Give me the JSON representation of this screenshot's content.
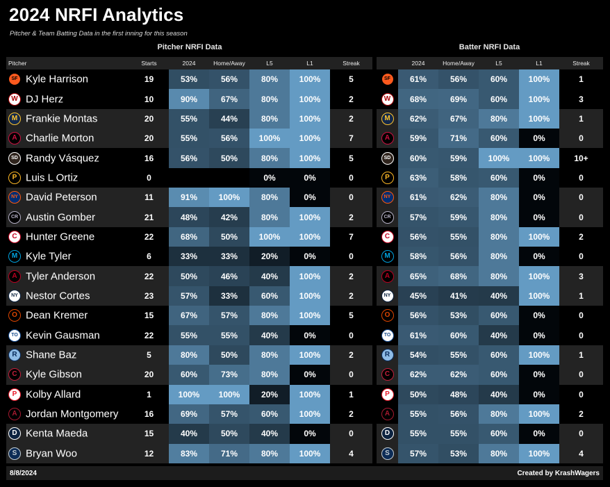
{
  "title": "2024 NRFI Analytics",
  "subtitle": "Pitcher & Team Batting Data in the first inning for this season",
  "pitcher_section_title": "Pitcher NRFI Data",
  "batter_section_title": "Batter NRFI Data",
  "pitcher_headers": [
    "Pitcher",
    "Starts",
    "2024",
    "Home/Away",
    "L5",
    "L1",
    "Streak"
  ],
  "batter_headers": [
    "2024",
    "Home/Away",
    "L5",
    "L1",
    "Streak"
  ],
  "rows": [
    {
      "name": "Kyle Harrison",
      "team_icon": "giants-logo-icon",
      "starts": "19",
      "p": [
        "53%",
        "56%",
        "80%",
        "100%"
      ],
      "p_streak": "5",
      "b": [
        "61%",
        "56%",
        "60%",
        "100%"
      ],
      "b_streak": "1"
    },
    {
      "name": "DJ Herz",
      "team_icon": "nationals-logo-icon",
      "starts": "10",
      "p": [
        "90%",
        "67%",
        "80%",
        "100%"
      ],
      "p_streak": "2",
      "b": [
        "68%",
        "69%",
        "60%",
        "100%"
      ],
      "b_streak": "3"
    },
    {
      "name": "Frankie Montas",
      "team_icon": "brewers-logo-icon",
      "starts": "20",
      "p": [
        "55%",
        "44%",
        "80%",
        "100%"
      ],
      "p_streak": "2",
      "b": [
        "62%",
        "67%",
        "80%",
        "100%"
      ],
      "b_streak": "1"
    },
    {
      "name": "Charlie Morton",
      "team_icon": "braves-logo-icon",
      "starts": "20",
      "p": [
        "55%",
        "56%",
        "100%",
        "100%"
      ],
      "p_streak": "7",
      "b": [
        "59%",
        "71%",
        "60%",
        "0%"
      ],
      "b_streak": "0"
    },
    {
      "name": "Randy Vásquez",
      "team_icon": "padres-logo-icon",
      "starts": "16",
      "p": [
        "56%",
        "50%",
        "80%",
        "100%"
      ],
      "p_streak": "5",
      "b": [
        "60%",
        "59%",
        "100%",
        "100%"
      ],
      "b_streak": "10+"
    },
    {
      "name": "Luis L Ortiz",
      "team_icon": "pirates-logo-icon",
      "starts": "0",
      "p": [
        "",
        "",
        "0%",
        "0%"
      ],
      "p_streak": "0",
      "b": [
        "63%",
        "58%",
        "60%",
        "0%"
      ],
      "b_streak": "0"
    },
    {
      "name": "David Peterson",
      "team_icon": "mets-logo-icon",
      "starts": "11",
      "p": [
        "91%",
        "100%",
        "80%",
        "0%"
      ],
      "p_streak": "0",
      "b": [
        "61%",
        "62%",
        "80%",
        "0%"
      ],
      "b_streak": "0"
    },
    {
      "name": "Austin Gomber",
      "team_icon": "rockies-logo-icon",
      "starts": "21",
      "p": [
        "48%",
        "42%",
        "80%",
        "100%"
      ],
      "p_streak": "2",
      "b": [
        "57%",
        "59%",
        "80%",
        "0%"
      ],
      "b_streak": "0"
    },
    {
      "name": "Hunter Greene",
      "team_icon": "reds-logo-icon",
      "starts": "22",
      "p": [
        "68%",
        "50%",
        "100%",
        "100%"
      ],
      "p_streak": "7",
      "b": [
        "56%",
        "55%",
        "80%",
        "100%"
      ],
      "b_streak": "2"
    },
    {
      "name": "Kyle Tyler",
      "team_icon": "marlins-logo-icon",
      "starts": "6",
      "p": [
        "33%",
        "33%",
        "20%",
        "0%"
      ],
      "p_streak": "0",
      "b": [
        "58%",
        "56%",
        "80%",
        "0%"
      ],
      "b_streak": "0"
    },
    {
      "name": "Tyler Anderson",
      "team_icon": "angels-logo-icon",
      "starts": "22",
      "p": [
        "50%",
        "46%",
        "40%",
        "100%"
      ],
      "p_streak": "2",
      "b": [
        "65%",
        "68%",
        "80%",
        "100%"
      ],
      "b_streak": "3"
    },
    {
      "name": "Nestor Cortes",
      "team_icon": "yankees-logo-icon",
      "starts": "23",
      "p": [
        "57%",
        "33%",
        "60%",
        "100%"
      ],
      "p_streak": "2",
      "b": [
        "45%",
        "41%",
        "40%",
        "100%"
      ],
      "b_streak": "1"
    },
    {
      "name": "Dean Kremer",
      "team_icon": "orioles-logo-icon",
      "starts": "15",
      "p": [
        "67%",
        "57%",
        "80%",
        "100%"
      ],
      "p_streak": "5",
      "b": [
        "56%",
        "53%",
        "60%",
        "0%"
      ],
      "b_streak": "0"
    },
    {
      "name": "Kevin Gausman",
      "team_icon": "blue-jays-logo-icon",
      "starts": "22",
      "p": [
        "55%",
        "55%",
        "40%",
        "0%"
      ],
      "p_streak": "0",
      "b": [
        "61%",
        "60%",
        "40%",
        "0%"
      ],
      "b_streak": "0"
    },
    {
      "name": "Shane Baz",
      "team_icon": "rays-logo-icon",
      "starts": "5",
      "p": [
        "80%",
        "50%",
        "80%",
        "100%"
      ],
      "p_streak": "2",
      "b": [
        "54%",
        "55%",
        "60%",
        "100%"
      ],
      "b_streak": "1"
    },
    {
      "name": "Kyle Gibson",
      "team_icon": "cardinals-logo-icon",
      "starts": "20",
      "p": [
        "60%",
        "73%",
        "80%",
        "0%"
      ],
      "p_streak": "0",
      "b": [
        "62%",
        "62%",
        "60%",
        "0%"
      ],
      "b_streak": "0"
    },
    {
      "name": "Kolby Allard",
      "team_icon": "phillies-logo-icon",
      "starts": "1",
      "p": [
        "100%",
        "100%",
        "20%",
        "100%"
      ],
      "p_streak": "1",
      "b": [
        "50%",
        "48%",
        "40%",
        "0%"
      ],
      "b_streak": "0"
    },
    {
      "name": "Jordan Montgomery",
      "team_icon": "diamondbacks-logo-icon",
      "starts": "16",
      "p": [
        "69%",
        "57%",
        "60%",
        "100%"
      ],
      "p_streak": "2",
      "b": [
        "55%",
        "56%",
        "80%",
        "100%"
      ],
      "b_streak": "2"
    },
    {
      "name": "Kenta Maeda",
      "team_icon": "tigers-logo-icon",
      "starts": "15",
      "p": [
        "40%",
        "50%",
        "40%",
        "0%"
      ],
      "p_streak": "0",
      "b": [
        "55%",
        "55%",
        "60%",
        "0%"
      ],
      "b_streak": "0"
    },
    {
      "name": "Bryan Woo",
      "team_icon": "mariners-logo-icon",
      "starts": "12",
      "p": [
        "83%",
        "71%",
        "80%",
        "100%"
      ],
      "p_streak": "4",
      "b": [
        "57%",
        "53%",
        "80%",
        "100%"
      ],
      "b_streak": "4"
    }
  ],
  "footer_date": "8/8/2024",
  "footer_credit": "Created by KrashWagers"
}
